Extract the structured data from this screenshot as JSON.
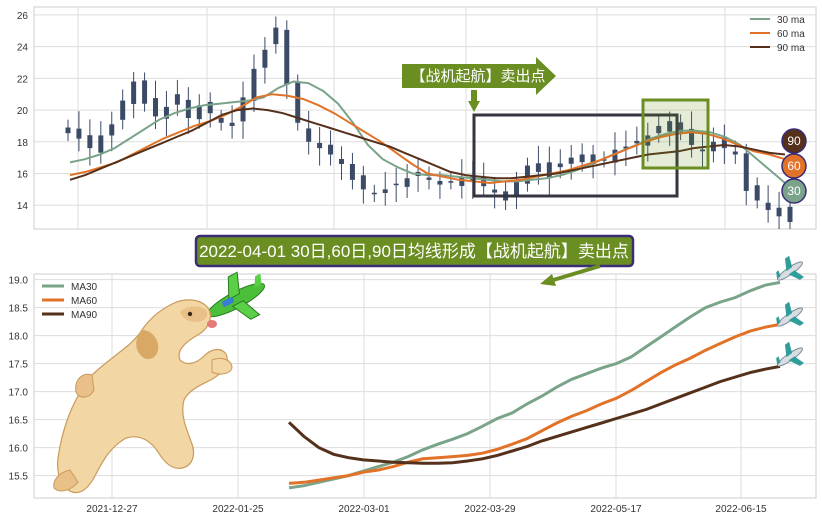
{
  "colors": {
    "ma30": "#7aa48a",
    "ma60": "#e27228",
    "ma90": "#55301b",
    "candle": "#3b4a66",
    "panel_bg": "#eaeaf2",
    "highlight_box": "#343540",
    "signal_green": "#6b8e23",
    "banner_bg": "#6b8e23",
    "banner_border": "#3a2c77"
  },
  "icons": {
    "plane": "airplane-icon",
    "dog": "dog-illustration",
    "toy_plane": "toy-airplane-icon"
  },
  "signal": {
    "arrow_label": "【战机起航】卖出点",
    "banner_text": "2022-04-01 30日,60日,90日均线形成【战机起航】卖出点"
  },
  "chart_data": [
    {
      "type": "line",
      "panel": "top",
      "ylim": [
        12.5,
        26.5
      ],
      "y_ticks": [
        14,
        16,
        18,
        20,
        22,
        24,
        26
      ],
      "x_ticks": [],
      "grid": true,
      "legend_position": "top-right",
      "legend": [
        "30 ma",
        "60 ma",
        "90 ma"
      ],
      "end_badges": [
        {
          "label": "90",
          "series": "90 ma"
        },
        {
          "label": "60",
          "series": "60 ma"
        },
        {
          "label": "30",
          "series": "30 ma"
        }
      ],
      "candles": {
        "name": "price",
        "approx_close": [
          18.9,
          18.2,
          17.6,
          18.4,
          19.1,
          20.6,
          21.8,
          20.4,
          19.6,
          20.2,
          21.0,
          19.5,
          20.3,
          19.8,
          19.2,
          19.0,
          20.8,
          22.6,
          23.8,
          25.2,
          21.6,
          19.2,
          18.0,
          17.6,
          17.2,
          16.6,
          15.6,
          15.0,
          14.7,
          15.0,
          15.3,
          15.7,
          16.1,
          15.6,
          15.3,
          15.5,
          15.8,
          15.5,
          15.2,
          14.8,
          14.3,
          15.5,
          16.5,
          16.1,
          16.7,
          16.4,
          17.0,
          17.2,
          16.6,
          16.9,
          17.5,
          17.7,
          17.9,
          18.4,
          19.0,
          19.3,
          18.6,
          17.8,
          17.4,
          18.0,
          17.6,
          17.2,
          14.9,
          14.3,
          13.7,
          13.3,
          13.9
        ]
      },
      "series": [
        {
          "name": "30 ma",
          "values": [
            16.7,
            16.9,
            17.2,
            17.6,
            18.2,
            18.8,
            19.4,
            19.8,
            20.1,
            20.3,
            20.4,
            20.5,
            20.6,
            20.8,
            21.4,
            21.8,
            21.7,
            21.2,
            20.4,
            19.2,
            17.8,
            16.9,
            16.4,
            16.0,
            15.9,
            15.9,
            15.8,
            15.7,
            15.6,
            15.5,
            15.5,
            15.6,
            15.7,
            15.9,
            16.2,
            16.6,
            17.0,
            17.4,
            17.8,
            18.2,
            18.5,
            18.7,
            18.7,
            18.6,
            18.3,
            17.8,
            17.0,
            16.2,
            15.4
          ]
        },
        {
          "name": "60 ma",
          "values": [
            15.9,
            16.1,
            16.4,
            16.7,
            17.2,
            17.7,
            18.2,
            18.6,
            19.0,
            19.3,
            19.7,
            20.2,
            20.8,
            21.0,
            20.9,
            20.7,
            20.3,
            19.8,
            19.2,
            18.6,
            18.0,
            17.3,
            16.6,
            16.0,
            15.8,
            15.6,
            15.5,
            15.4,
            15.5,
            15.6,
            15.8,
            16.0,
            16.2,
            16.5,
            16.8,
            17.2,
            17.6,
            18.0,
            18.3,
            18.5,
            18.6,
            18.5,
            18.2,
            17.8,
            17.4,
            17.2,
            16.9
          ]
        },
        {
          "name": "90 ma",
          "values": [
            15.6,
            15.9,
            16.3,
            16.7,
            17.1,
            17.5,
            17.9,
            18.3,
            18.7,
            19.2,
            19.7,
            20.0,
            20.1,
            20.0,
            19.8,
            19.5,
            19.2,
            18.9,
            18.6,
            18.3,
            18.0,
            17.7,
            17.3,
            16.9,
            16.5,
            16.1,
            15.9,
            15.8,
            15.7,
            15.7,
            15.8,
            15.9,
            16.0,
            16.2,
            16.4,
            16.6,
            16.8,
            17.0,
            17.2,
            17.3,
            17.4,
            17.6,
            17.7,
            17.8,
            17.7,
            17.5,
            17.3,
            17.2
          ]
        }
      ]
    },
    {
      "type": "line",
      "panel": "bottom",
      "ylim": [
        15.1,
        19.1
      ],
      "y_ticks": [
        15.5,
        16.0,
        16.5,
        17.0,
        17.5,
        18.0,
        18.5,
        19.0
      ],
      "x_ticks": [
        "2021-12-27",
        "2022-01-25",
        "2022-03-01",
        "2022-03-29",
        "2022-05-17",
        "2022-06-15"
      ],
      "grid": true,
      "legend_position": "top-left",
      "series": [
        {
          "name": "MA30",
          "values": [
            15.28,
            15.32,
            15.38,
            15.44,
            15.5,
            15.58,
            15.66,
            15.74,
            15.84,
            15.96,
            16.06,
            16.15,
            16.25,
            16.38,
            16.52,
            16.62,
            16.78,
            16.92,
            17.08,
            17.22,
            17.32,
            17.42,
            17.5,
            17.62,
            17.8,
            17.98,
            18.16,
            18.34,
            18.5,
            18.6,
            18.68,
            18.8,
            18.9,
            18.95
          ]
        },
        {
          "name": "MA60",
          "values": [
            15.36,
            15.38,
            15.42,
            15.46,
            15.5,
            15.56,
            15.6,
            15.66,
            15.74,
            15.8,
            15.82,
            15.84,
            15.86,
            15.9,
            15.97,
            16.06,
            16.16,
            16.3,
            16.44,
            16.56,
            16.66,
            16.78,
            16.88,
            17.02,
            17.18,
            17.34,
            17.48,
            17.6,
            17.74,
            17.86,
            17.98,
            18.08,
            18.15,
            18.2
          ]
        },
        {
          "name": "MA90",
          "values": [
            16.45,
            16.2,
            16.0,
            15.88,
            15.82,
            15.78,
            15.76,
            15.74,
            15.73,
            15.72,
            15.72,
            15.73,
            15.76,
            15.8,
            15.86,
            15.94,
            16.02,
            16.12,
            16.2,
            16.28,
            16.36,
            16.44,
            16.52,
            16.6,
            16.68,
            16.78,
            16.88,
            16.98,
            17.08,
            17.18,
            17.26,
            17.34,
            17.4,
            17.45
          ]
        }
      ]
    }
  ]
}
